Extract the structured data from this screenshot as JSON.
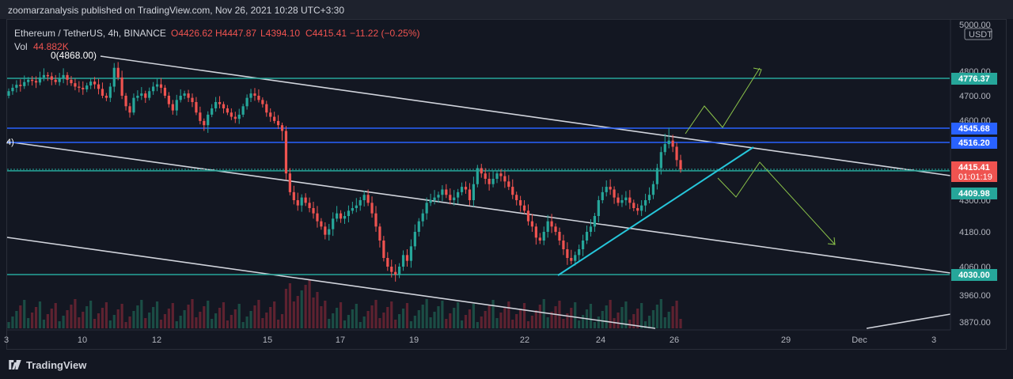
{
  "header": {
    "published": "zoomarzanalysis published on TradingView.com, Nov 26, 2021 10:28 UTC+3:30"
  },
  "footer": {
    "brand": "TradingView"
  },
  "colors": {
    "bg": "#131722",
    "up": "#26a69a",
    "down": "#ef5350",
    "teal_line": "#26a69a",
    "blue_line": "#2962ff",
    "channel": "#d1d4dc",
    "cyan_trend": "#26c6da",
    "arrow": "#8bc34a"
  },
  "chart_data": {
    "type": "candlestick",
    "legend": {
      "symbol": "Ethereum / TetherUS, 4h, BINANCE",
      "O": "O4426.62",
      "H": "H4447.87",
      "L": "L4394.10",
      "C": "C4415.41",
      "change": "−11.22 (−0.25%)",
      "vol_label": "Vol",
      "vol_value": "44.882K"
    },
    "currency": "USDT",
    "y_ticks": [
      "5000.00",
      "4800.00",
      "4700.00",
      "4600.00",
      "4300.00",
      "4180.00",
      "4060.00",
      "3960.00",
      "3870.00"
    ],
    "x_ticks": [
      "3",
      "10",
      "12",
      "15",
      "17",
      "19",
      "22",
      "24",
      "26",
      "29",
      "Dec",
      "3"
    ],
    "pivot_label": "0(4868.00)",
    "left_edge_label": "4)",
    "horizontal_levels": [
      {
        "label": "4776.37",
        "value": 4776.37,
        "kind": "teal"
      },
      {
        "label": "4545.68",
        "value": 4545.68,
        "kind": "blue"
      },
      {
        "label": "4516.20",
        "value": 4516.2,
        "kind": "blue"
      },
      {
        "label": "4415.41",
        "sub": "01:01:19",
        "value": 4415.41,
        "kind": "price"
      },
      {
        "label": "4409.98",
        "value": 4409.98,
        "kind": "teal"
      },
      {
        "label": "4030.00",
        "value": 4030.0,
        "kind": "teal"
      }
    ]
  }
}
